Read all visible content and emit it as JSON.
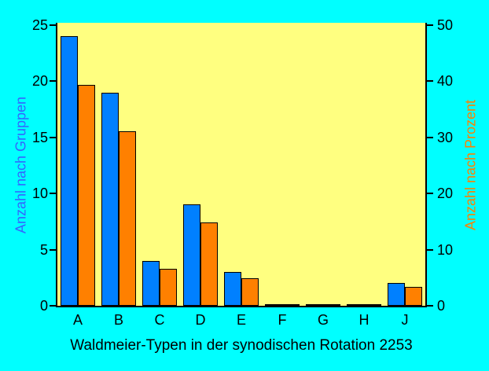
{
  "page": {
    "background": "#00FFFF"
  },
  "chart_data": {
    "type": "bar",
    "title": "Waldmeier-Typen in der synodischen Rotation 2253",
    "categories": [
      "A",
      "B",
      "C",
      "D",
      "E",
      "F",
      "G",
      "H",
      "J"
    ],
    "series": [
      {
        "name": "Anzahl nach Gruppen",
        "axis": "left",
        "color": "#0080FF",
        "values": [
          24,
          19,
          4,
          9,
          3,
          0,
          0,
          0,
          2
        ]
      },
      {
        "name": "Anzahl nach Prozent",
        "axis": "right",
        "color": "#FF8000",
        "values": [
          39.3,
          31.1,
          6.6,
          14.8,
          4.9,
          0,
          0,
          0,
          3.3
        ]
      }
    ],
    "left_axis": {
      "label": "Anzahl nach Gruppen",
      "min": 0,
      "max": 25,
      "ticks": [
        0,
        5,
        10,
        15,
        20,
        25
      ],
      "label_color": "#3366FF",
      "tick_color": "#000000"
    },
    "right_axis": {
      "label": "Anzahl nach Prozent",
      "min": 0,
      "max": 50,
      "ticks": [
        0,
        10,
        20,
        30,
        40,
        50
      ],
      "label_color": "#FF8000",
      "tick_color": "#000000"
    },
    "plot_background": "#FFFF80",
    "bar_outline": "#000000",
    "grid": "off",
    "legend": "none"
  }
}
